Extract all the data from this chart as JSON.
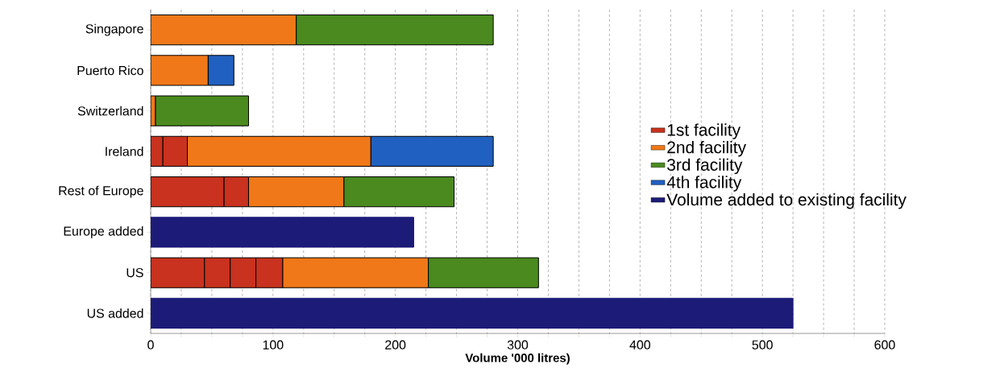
{
  "chart_data": {
    "type": "bar",
    "orientation": "horizontal",
    "stacked": true,
    "categories": [
      "Singapore",
      "Puerto Rico",
      "Switzerland",
      "Ireland",
      "Rest of Europe",
      "Europe added",
      "US",
      "US added"
    ],
    "series": [
      {
        "name": "1st facility",
        "color": "#c8321e",
        "values": [
          null,
          null,
          null,
          10,
          60,
          null,
          44,
          null
        ]
      },
      {
        "color": "#c8321e",
        "values": [
          null,
          null,
          null,
          20,
          20,
          null,
          21,
          null
        ]
      },
      {
        "color": "#c8321e",
        "values": [
          null,
          null,
          null,
          null,
          null,
          null,
          21,
          null
        ]
      },
      {
        "color": "#c8321e",
        "values": [
          null,
          null,
          null,
          null,
          null,
          null,
          22,
          null
        ]
      },
      {
        "name": "2nd facility",
        "color": "#f07818",
        "values": [
          119,
          47,
          4,
          150,
          78,
          null,
          119,
          null
        ]
      },
      {
        "name": "3rd facility",
        "color": "#4a8a1e",
        "values": [
          161,
          null,
          76,
          null,
          90,
          null,
          90,
          null
        ]
      },
      {
        "name": "4th facility",
        "color": "#2060c0",
        "values": [
          null,
          21,
          null,
          100,
          null,
          null,
          null,
          null
        ]
      },
      {
        "name": "Volume added to existing facility",
        "color": "#1c1c78",
        "values": [
          null,
          null,
          null,
          null,
          null,
          215,
          null,
          525
        ]
      }
    ],
    "xlabel": "Volume '000 litres)",
    "xlim": [
      0,
      600
    ],
    "xticks": [
      0,
      {
        "value": 25,
        "label": null
      },
      {
        "value": 50,
        "label": null
      },
      {
        "value": 75,
        "label": null
      },
      100,
      {
        "value": 125,
        "label": null
      },
      {
        "value": 150,
        "label": null
      },
      {
        "value": 175,
        "label": null
      },
      200,
      {
        "value": 225,
        "label": null
      },
      {
        "value": 250,
        "label": null
      },
      {
        "value": 275,
        "label": null
      },
      300,
      {
        "value": 325,
        "label": null
      },
      {
        "value": 350,
        "label": null
      },
      {
        "value": 375,
        "label": null
      },
      400,
      {
        "value": 425,
        "label": null
      },
      {
        "value": 450,
        "label": null
      },
      {
        "value": 475,
        "label": null
      },
      500,
      {
        "value": 525,
        "label": null
      },
      {
        "value": 550,
        "label": null
      },
      {
        "value": 575,
        "label": null
      },
      600
    ],
    "grid": "x",
    "legend": "right"
  }
}
